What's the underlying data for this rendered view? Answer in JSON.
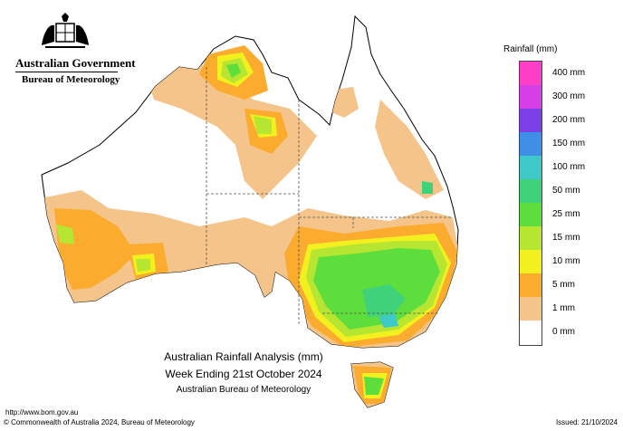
{
  "header": {
    "agency": "Australian Government",
    "bureau": "Bureau of Meteorology"
  },
  "map": {
    "title_line1": "Australian Rainfall Analysis (mm)",
    "title_line2": "Week Ending 21st October 2024",
    "title_line3": "Australian Bureau of Meteorology"
  },
  "legend": {
    "title": "Rainfall (mm)",
    "items": [
      {
        "label": "400 mm",
        "color": "#ff3fc8"
      },
      {
        "label": "300 mm",
        "color": "#d43fe6"
      },
      {
        "label": "200 mm",
        "color": "#7b3fe6"
      },
      {
        "label": "150 mm",
        "color": "#3f8fe6"
      },
      {
        "label": "100 mm",
        "color": "#3fc8c8"
      },
      {
        "label": "50 mm",
        "color": "#3fd27a"
      },
      {
        "label": "25 mm",
        "color": "#5ede3c"
      },
      {
        "label": "15 mm",
        "color": "#b6e632"
      },
      {
        "label": "10 mm",
        "color": "#f2f01e"
      },
      {
        "label": "5 mm",
        "color": "#fbab2e"
      },
      {
        "label": "1 mm",
        "color": "#f4c48a"
      },
      {
        "label": "0 mm",
        "color": "#ffffff"
      }
    ]
  },
  "footer": {
    "url": "http://www.bom.gov.au",
    "copyright": "© Commonwealth of Australia 2024, Bureau of Meteorology",
    "issued": "Issued: 21/10/2024"
  },
  "colors": {
    "outline": "#000000",
    "border": "#555555",
    "band_1": "#f4c48a",
    "band_5": "#fbab2e",
    "band_10": "#f2f01e",
    "band_15": "#b6e632",
    "band_25": "#5ede3c",
    "band_50": "#3fd27a",
    "band_100": "#3fc8c8"
  }
}
